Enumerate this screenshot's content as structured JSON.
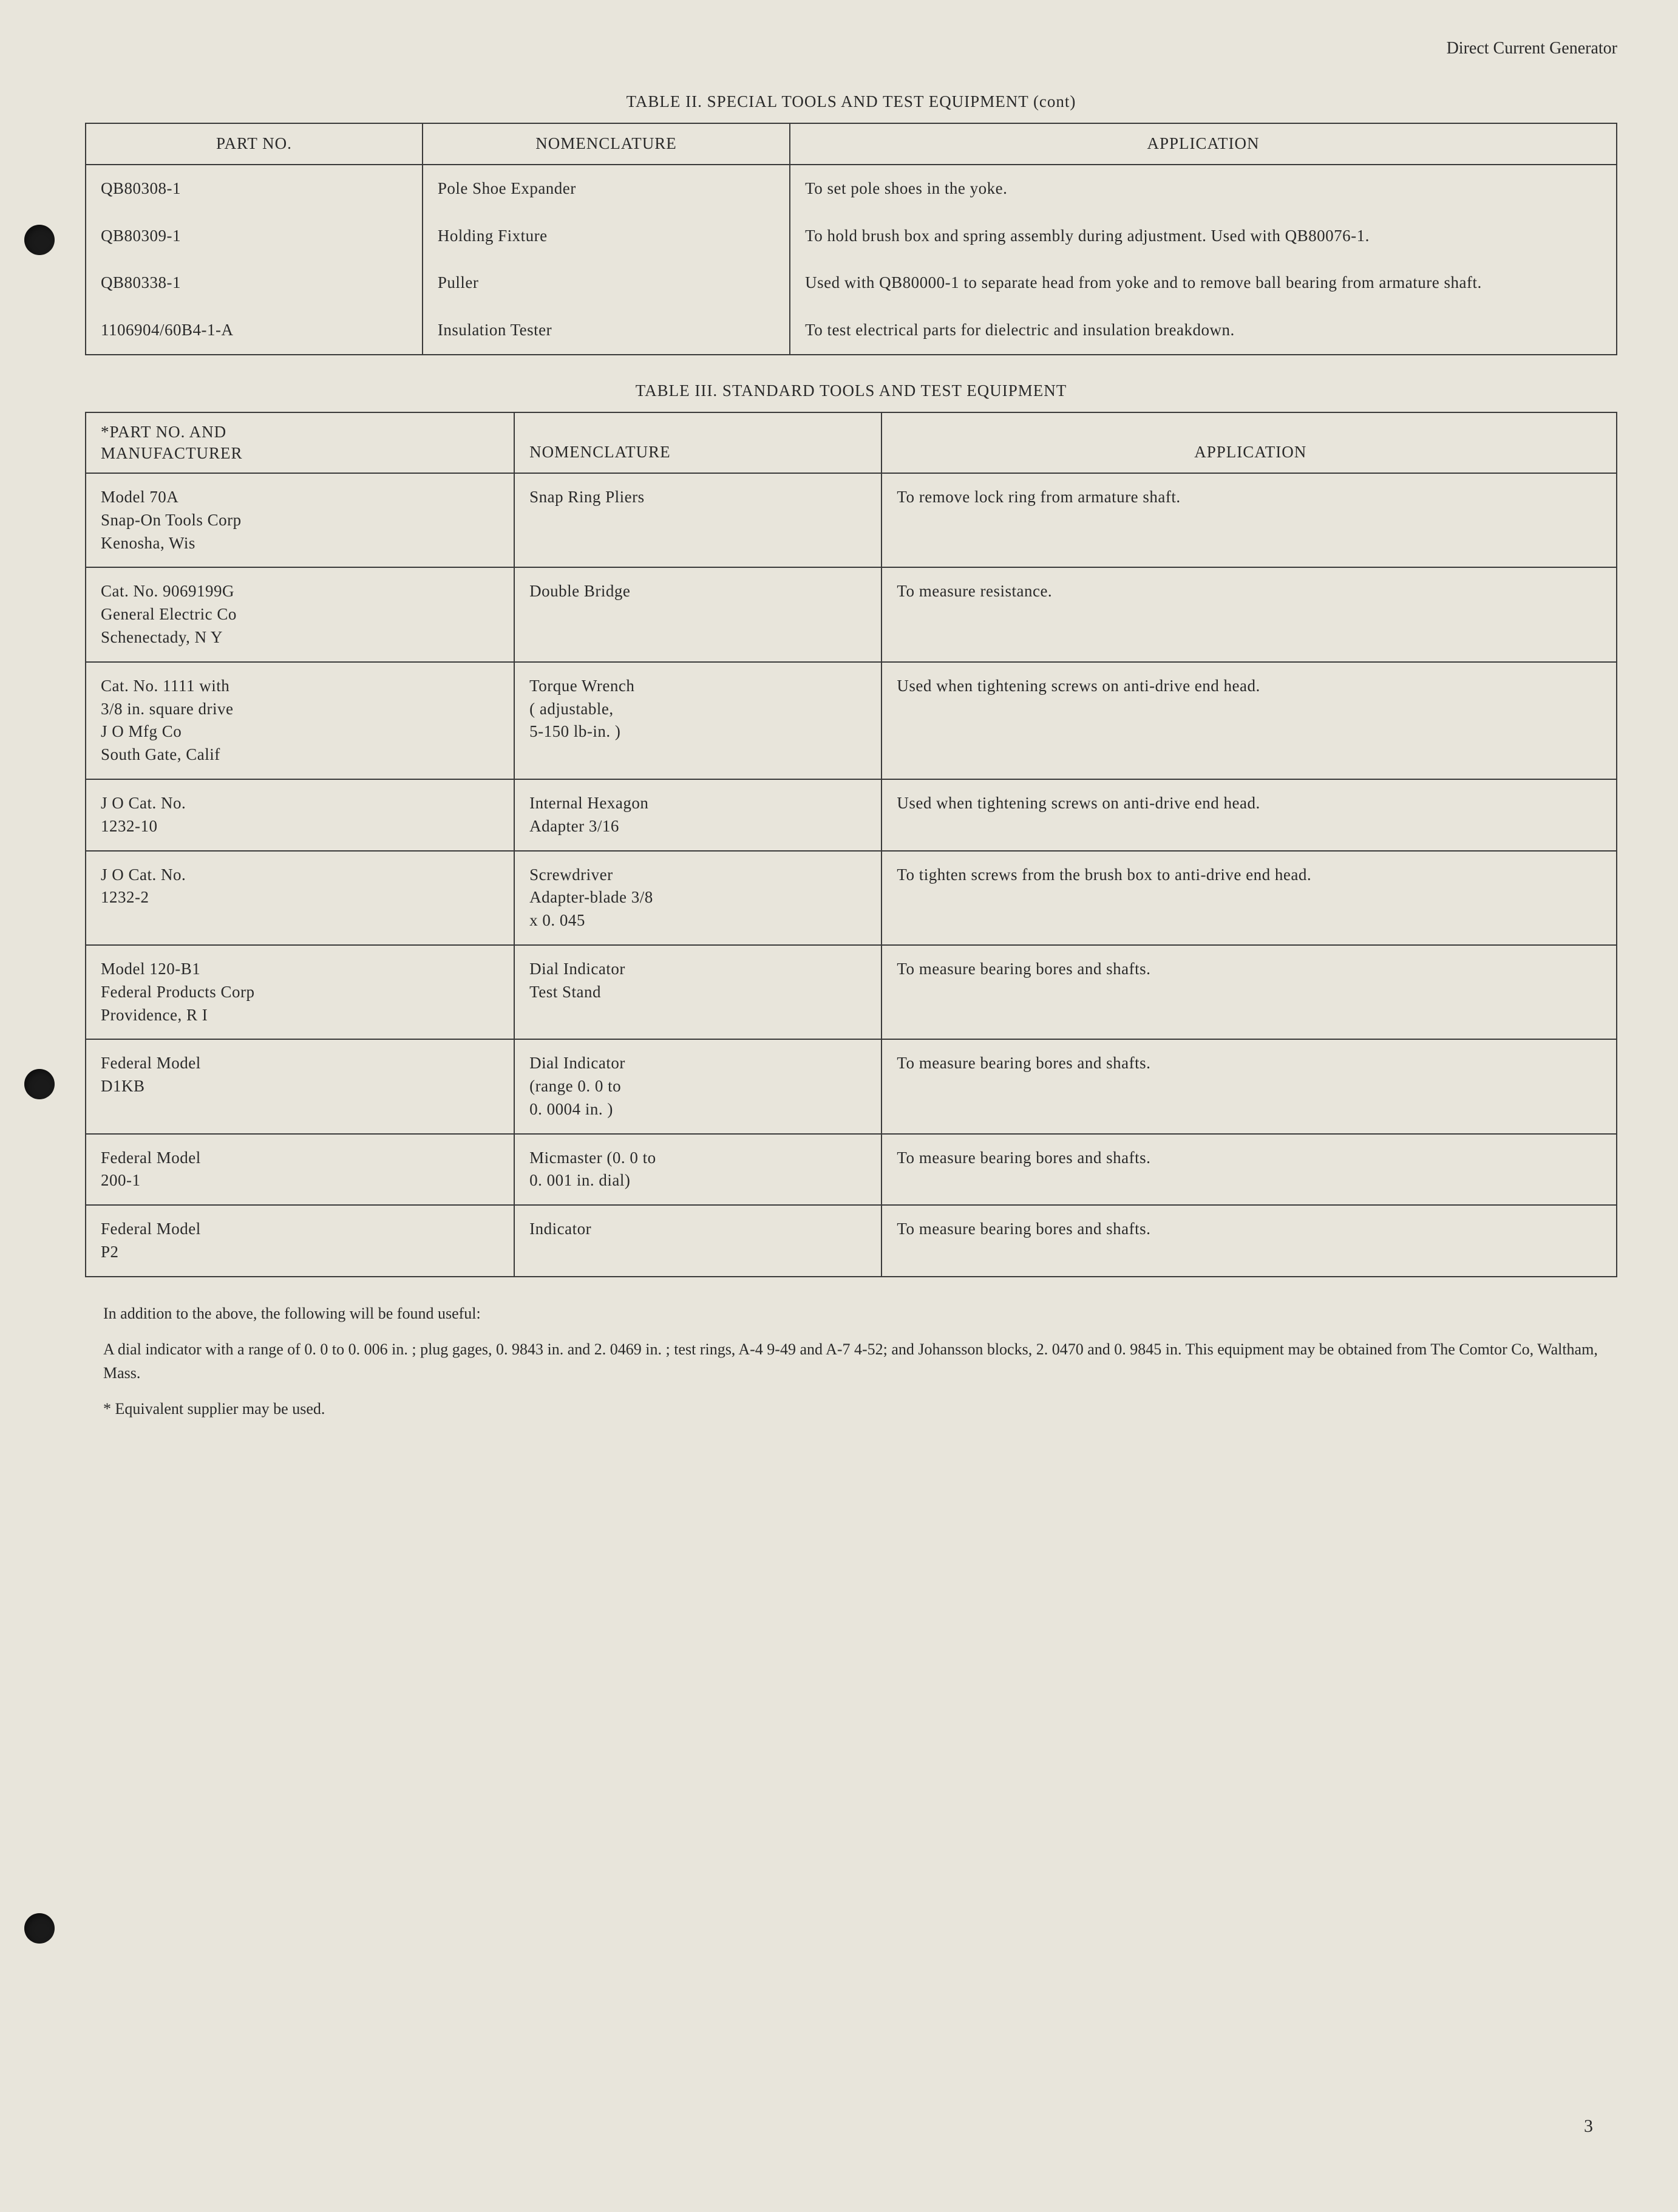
{
  "header": {
    "right_text": "Direct Current Generator"
  },
  "table2": {
    "title": "TABLE II.  SPECIAL TOOLS AND TEST EQUIPMENT (cont)",
    "columns": [
      "PART NO.",
      "NOMENCLATURE",
      "APPLICATION"
    ],
    "rows": [
      {
        "part": "QB80308-1",
        "nomen": "Pole Shoe Expander",
        "app": "To set pole shoes in the yoke."
      },
      {
        "part": "QB80309-1",
        "nomen": "Holding Fixture",
        "app": "To hold brush box and spring assembly during adjustment.  Used with QB80076-1."
      },
      {
        "part": "QB80338-1",
        "nomen": "Puller",
        "app": "Used with QB80000-1 to separate head from yoke and to remove ball bearing from armature shaft."
      },
      {
        "part": "1106904/60B4-1-A",
        "nomen": "Insulation Tester",
        "app": "To test electrical parts for dielectric and insulation breakdown."
      }
    ]
  },
  "table3": {
    "title": "TABLE III.  STANDARD TOOLS AND TEST EQUIPMENT",
    "columns": {
      "col1_line1": "*PART NO. AND",
      "col1_line2": "MANUFACTURER",
      "col2": "NOMENCLATURE",
      "col3": "APPLICATION"
    },
    "rows": [
      {
        "part": "Model 70A\nSnap-On Tools Corp\nKenosha, Wis",
        "nomen": "Snap Ring Pliers",
        "app": "To remove lock ring from armature shaft."
      },
      {
        "part": "Cat. No. 9069199G\nGeneral Electric Co\nSchenectady, N Y",
        "nomen": "Double Bridge",
        "app": "To measure resistance."
      },
      {
        "part": "Cat. No. 1111 with\n3/8 in. square drive\nJ O Mfg Co\nSouth Gate, Calif",
        "nomen": "Torque Wrench\n( adjustable,\n5-150 lb-in. )",
        "app": "Used when tightening screws on anti-drive end head."
      },
      {
        "part": "J O Cat. No.\n1232-10",
        "nomen": "Internal Hexagon\nAdapter 3/16",
        "app": "Used when tightening screws on anti-drive end head."
      },
      {
        "part": "J O Cat. No.\n1232-2",
        "nomen": "Screwdriver\nAdapter-blade 3/8\nx 0. 045",
        "app": "To tighten screws from the brush box to anti-drive end head."
      },
      {
        "part": "Model 120-B1\nFederal Products Corp\nProvidence, R I",
        "nomen": "Dial Indicator\nTest Stand",
        "app": "To measure bearing bores and shafts."
      },
      {
        "part": "Federal Model\nD1KB",
        "nomen": "Dial Indicator\n(range 0. 0 to\n0. 0004 in. )",
        "app": "To measure bearing bores and shafts."
      },
      {
        "part": "Federal Model\n200-1",
        "nomen": "Micmaster (0. 0 to\n0. 001 in. dial)",
        "app": "To measure bearing bores and shafts."
      },
      {
        "part": "Federal Model\nP2",
        "nomen": "Indicator",
        "app": "To measure bearing bores and shafts."
      }
    ]
  },
  "notes": {
    "p1": "In addition to the above, the following will be found useful:",
    "p2": "A dial indicator with a range of 0. 0 to 0. 006 in. ; plug gages, 0. 9843 in. and 2. 0469 in. ; test rings, A-4 9-49 and A-7 4-52; and Johansson blocks, 2. 0470 and 0. 9845 in.  This equipment may be obtained from The Comtor Co, Waltham, Mass.",
    "p3": "* Equivalent supplier may be used."
  },
  "page_number": "3"
}
